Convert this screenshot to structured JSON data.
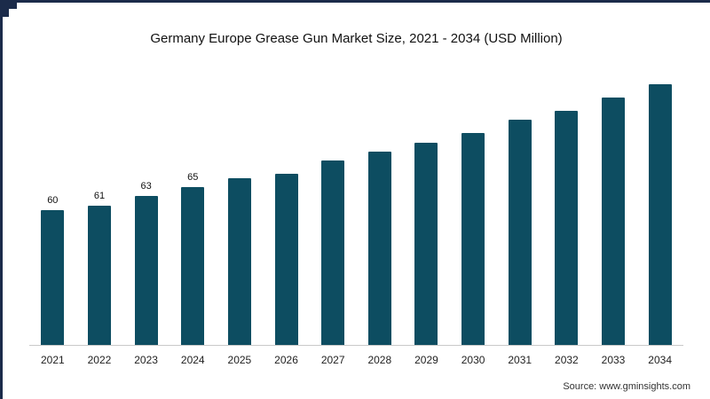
{
  "page": {
    "source": "Source: www.gminsights.com"
  },
  "frame": {
    "border_color": "#1b2b4a"
  },
  "chart_data": {
    "type": "bar",
    "title": "Germany Europe Grease Gun Market Size, 2021 - 2034 (USD Million)",
    "categories": [
      "2021",
      "2022",
      "2023",
      "2024",
      "2025",
      "2026",
      "2027",
      "2028",
      "2029",
      "2030",
      "2031",
      "2032",
      "2033",
      "2034"
    ],
    "values": [
      60,
      61,
      63,
      65,
      67,
      68,
      71,
      73,
      75,
      77,
      80,
      82,
      85,
      88
    ],
    "data_labels": [
      "60",
      "61",
      "63",
      "65"
    ],
    "bar_color": "#0d4d61",
    "xlabel": "",
    "ylabel": "",
    "ylim": [
      30,
      95
    ],
    "grid": false,
    "legend": "none"
  }
}
